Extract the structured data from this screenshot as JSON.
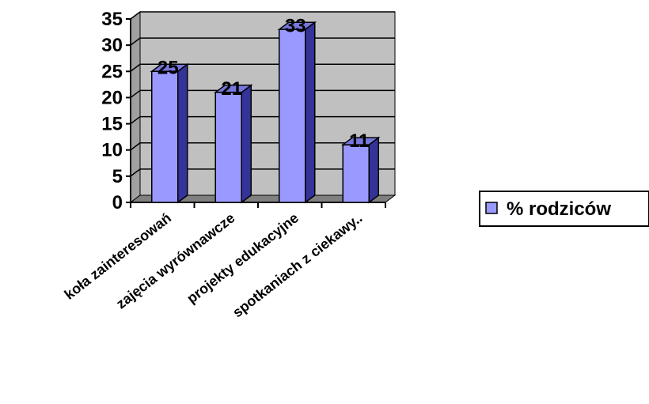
{
  "chart_data": {
    "type": "bar",
    "style": "3d-clustered-column",
    "categories": [
      "koła zainteresowań",
      "zajęcia wyrównawcze",
      "projekty edukacyjne",
      "spotkaniach z ciekawy.."
    ],
    "series": [
      {
        "name": "% rodziców",
        "values": [
          25,
          21,
          33,
          11
        ],
        "color": "#9999ff"
      }
    ],
    "ylim": [
      0,
      35
    ],
    "yticks": [
      0,
      5,
      10,
      15,
      20,
      25,
      30,
      35
    ],
    "grid": true,
    "legend": "right",
    "data_labels": true,
    "colors": {
      "wall": "#c0c0c0",
      "floor": "#808080",
      "bar_front": "#9999ff",
      "bar_side": "#333399",
      "bar_top": "#7777dd"
    }
  }
}
